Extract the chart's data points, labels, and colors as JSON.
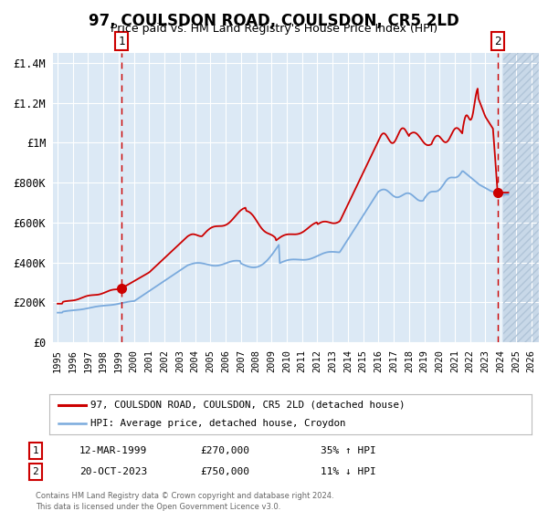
{
  "title": "97, COULSDON ROAD, COULSDON, CR5 2LD",
  "subtitle": "Price paid vs. HM Land Registry's House Price Index (HPI)",
  "x_start": 1994.7,
  "x_end": 2026.5,
  "y_min": 0,
  "y_max": 1450000,
  "yticks": [
    0,
    200000,
    400000,
    600000,
    800000,
    1000000,
    1200000,
    1400000
  ],
  "ytick_labels": [
    "£0",
    "£200K",
    "£400K",
    "£600K",
    "£800K",
    "£1M",
    "£1.2M",
    "£1.4M"
  ],
  "xticks": [
    1995,
    1996,
    1997,
    1998,
    1999,
    2000,
    2001,
    2002,
    2003,
    2004,
    2005,
    2006,
    2007,
    2008,
    2009,
    2010,
    2011,
    2012,
    2013,
    2014,
    2015,
    2016,
    2017,
    2018,
    2019,
    2020,
    2021,
    2022,
    2023,
    2024,
    2025,
    2026
  ],
  "bg_color": "#dce9f5",
  "hatch_color": "#c8d8e8",
  "grid_color": "#ffffff",
  "red_line_color": "#cc0000",
  "blue_line_color": "#7aaadd",
  "marker1_x": 1999.19,
  "marker1_y": 270000,
  "marker2_x": 2023.8,
  "marker2_y": 750000,
  "vline1_x": 1999.19,
  "vline2_x": 2023.8,
  "hatch_start": 2024.17,
  "legend_label_red": "97, COULSDON ROAD, COULSDON, CR5 2LD (detached house)",
  "legend_label_blue": "HPI: Average price, detached house, Croydon",
  "annotation1_num": "1",
  "annotation1_date": "12-MAR-1999",
  "annotation1_price": "£270,000",
  "annotation1_hpi": "35% ↑ HPI",
  "annotation2_num": "2",
  "annotation2_date": "20-OCT-2023",
  "annotation2_price": "£750,000",
  "annotation2_hpi": "11% ↓ HPI",
  "footer1": "Contains HM Land Registry data © Crown copyright and database right 2024.",
  "footer2": "This data is licensed under the Open Government Licence v3.0.",
  "title_fontsize": 12,
  "subtitle_fontsize": 9
}
